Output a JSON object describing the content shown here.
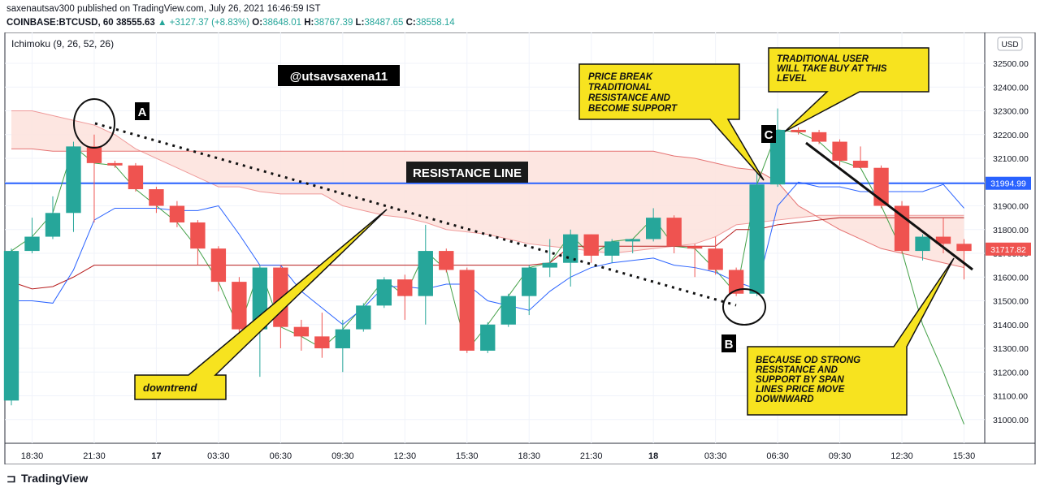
{
  "header": {
    "line1": "saxenautsav300 published on TradingView.com, July 26, 2021 16:46:59 IST",
    "symbol": "COINBASE:BTCUSD, 60",
    "last": "38555.63",
    "change": "+3127.37 (+8.83%)",
    "o_label": "O:",
    "o_value": "38648.01",
    "h_label": "H:",
    "h_value": "38767.39",
    "l_label": "L:",
    "l_value": "38487.65",
    "c_label": "C:",
    "c_value": "38558.14"
  },
  "indicator_label": "Ichimoku (9, 26, 52, 26)",
  "currency_label": "USD",
  "watermark": "@utsavsaxena11",
  "resistance_label": "RESISTANCE LINE",
  "markers": {
    "A": "A",
    "B": "B",
    "C": "C"
  },
  "callouts": {
    "price_break": [
      "PRICE BREAK",
      "TRADITIONAL",
      "RESISTANCE AND",
      "BECOME SUPPORT"
    ],
    "traditional_user": [
      "TRADITIONAL USER",
      "WILL TAKE BUY AT THIS",
      "LEVEL"
    ],
    "because": [
      "BECAUSE OD STRONG",
      "RESISTANCE AND",
      "SUPPORT BY SPAN",
      "LINES PRICE MOVE",
      "DOWNWARD"
    ],
    "downtrend": "downtrend"
  },
  "footer_brand": "TradingView",
  "colors": {
    "up": "#26a69a",
    "down": "#ef5350",
    "resistance": "#2962ff",
    "callout_fill": "#f7e31f",
    "cloud": "#fde2dc",
    "tenkan": "#2962ff",
    "kijun": "#b71c1c",
    "chikou": "#43a047",
    "price_tag": "#ef5350"
  },
  "chart_data": {
    "type": "candlestick",
    "ylim": [
      30900,
      32630
    ],
    "y_ticks": [
      31000,
      31100,
      31200,
      31300,
      31400,
      31500,
      31600,
      31700,
      31800,
      31900,
      32000,
      32100,
      32200,
      32300,
      32400,
      32500
    ],
    "y_tick_labels": [
      "31000.00",
      "31100.00",
      "31200.00",
      "31300.00",
      "31400.00",
      "31500.00",
      "31600.00",
      "31700.00",
      "31800.00",
      "31900.00",
      "32000.00",
      "32100.00",
      "32200.00",
      "32300.00",
      "32400.00",
      "32500.00"
    ],
    "x_tick_labels": [
      "18:30",
      "21:30",
      "17",
      "03:30",
      "06:30",
      "09:30",
      "12:30",
      "15:30",
      "18:30",
      "21:30",
      "18",
      "03:30",
      "06:30",
      "09:30",
      "12:30",
      "15:30"
    ],
    "x_tick_index": [
      1,
      4,
      7,
      10,
      13,
      16,
      19,
      22,
      25,
      28,
      31,
      34,
      37,
      40,
      43,
      46
    ],
    "resistance_level": 31994.99,
    "resistance_label": "31994.99",
    "last_price": 31717.82,
    "last_price_label": "31717.82",
    "candles": [
      {
        "o": 31080,
        "h": 31720,
        "l": 31060,
        "c": 31710
      },
      {
        "o": 31710,
        "h": 31850,
        "l": 31700,
        "c": 31770
      },
      {
        "o": 31770,
        "h": 31940,
        "l": 31760,
        "c": 31870
      },
      {
        "o": 31870,
        "h": 32170,
        "l": 31790,
        "c": 32150
      },
      {
        "o": 32150,
        "h": 32200,
        "l": 31830,
        "c": 32080
      },
      {
        "o": 32080,
        "h": 32090,
        "l": 32060,
        "c": 32070
      },
      {
        "o": 32070,
        "h": 32080,
        "l": 31960,
        "c": 31970
      },
      {
        "o": 31970,
        "h": 31980,
        "l": 31870,
        "c": 31900
      },
      {
        "o": 31900,
        "h": 31920,
        "l": 31810,
        "c": 31830
      },
      {
        "o": 31830,
        "h": 31840,
        "l": 31650,
        "c": 31720
      },
      {
        "o": 31720,
        "h": 31730,
        "l": 31540,
        "c": 31580
      },
      {
        "o": 31580,
        "h": 31600,
        "l": 31360,
        "c": 31380
      },
      {
        "o": 31380,
        "h": 31650,
        "l": 31180,
        "c": 31640
      },
      {
        "o": 31640,
        "h": 31650,
        "l": 31300,
        "c": 31390
      },
      {
        "o": 31390,
        "h": 31420,
        "l": 31290,
        "c": 31350
      },
      {
        "o": 31350,
        "h": 31450,
        "l": 31260,
        "c": 31300
      },
      {
        "o": 31300,
        "h": 31420,
        "l": 31200,
        "c": 31380
      },
      {
        "o": 31380,
        "h": 31490,
        "l": 31370,
        "c": 31480
      },
      {
        "o": 31480,
        "h": 31600,
        "l": 31470,
        "c": 31590
      },
      {
        "o": 31590,
        "h": 31610,
        "l": 31420,
        "c": 31520
      },
      {
        "o": 31520,
        "h": 31820,
        "l": 31400,
        "c": 31710
      },
      {
        "o": 31710,
        "h": 31720,
        "l": 31620,
        "c": 31630
      },
      {
        "o": 31630,
        "h": 31640,
        "l": 31280,
        "c": 31290
      },
      {
        "o": 31290,
        "h": 31410,
        "l": 31280,
        "c": 31400
      },
      {
        "o": 31400,
        "h": 31530,
        "l": 31390,
        "c": 31520
      },
      {
        "o": 31520,
        "h": 31650,
        "l": 31440,
        "c": 31640
      },
      {
        "o": 31640,
        "h": 31760,
        "l": 31600,
        "c": 31660
      },
      {
        "o": 31660,
        "h": 31800,
        "l": 31560,
        "c": 31780
      },
      {
        "o": 31780,
        "h": 31780,
        "l": 31660,
        "c": 31690
      },
      {
        "o": 31690,
        "h": 31760,
        "l": 31660,
        "c": 31750
      },
      {
        "o": 31750,
        "h": 31760,
        "l": 31700,
        "c": 31760
      },
      {
        "o": 31760,
        "h": 31890,
        "l": 31750,
        "c": 31850
      },
      {
        "o": 31850,
        "h": 31860,
        "l": 31700,
        "c": 31730
      },
      {
        "o": 31730,
        "h": 31740,
        "l": 31600,
        "c": 31720
      },
      {
        "o": 31720,
        "h": 31770,
        "l": 31610,
        "c": 31630
      },
      {
        "o": 31630,
        "h": 31640,
        "l": 31520,
        "c": 31530
      },
      {
        "o": 31530,
        "h": 32060,
        "l": 31520,
        "c": 31990
      },
      {
        "o": 31990,
        "h": 32310,
        "l": 31980,
        "c": 32220
      },
      {
        "o": 32220,
        "h": 32230,
        "l": 32200,
        "c": 32210
      },
      {
        "o": 32210,
        "h": 32220,
        "l": 32160,
        "c": 32170
      },
      {
        "o": 32170,
        "h": 32180,
        "l": 32070,
        "c": 32090
      },
      {
        "o": 32090,
        "h": 32150,
        "l": 32060,
        "c": 32060
      },
      {
        "o": 32060,
        "h": 32070,
        "l": 31890,
        "c": 31900
      },
      {
        "o": 31900,
        "h": 31920,
        "l": 31700,
        "c": 31710
      },
      {
        "o": 31710,
        "h": 31780,
        "l": 31670,
        "c": 31770
      },
      {
        "o": 31770,
        "h": 31850,
        "l": 31700,
        "c": 31740
      },
      {
        "o": 31740,
        "h": 31760,
        "l": 31590,
        "c": 31710
      }
    ],
    "tenkan_sen": [
      31500,
      31500,
      31490,
      31630,
      31840,
      31890,
      31890,
      31890,
      31880,
      31880,
      31900,
      31780,
      31650,
      31650,
      31540,
      31470,
      31400,
      31470,
      31560,
      31560,
      31550,
      31570,
      31570,
      31500,
      31480,
      31460,
      31540,
      31600,
      31640,
      31660,
      31670,
      31680,
      31650,
      31640,
      31620,
      31580,
      31550,
      31900,
      32000,
      31980,
      31980,
      31960,
      31960,
      31960,
      31960,
      31990,
      31890
    ],
    "kijun_sen": [
      31580,
      31550,
      31560,
      31600,
      31650,
      31650,
      31650,
      31650,
      31650,
      31650,
      31650,
      31650,
      31650,
      31650,
      31650,
      31650,
      31650,
      31650,
      31650,
      31650,
      31650,
      31650,
      31650,
      31650,
      31650,
      31650,
      31660,
      31730,
      31730,
      31730,
      31730,
      31730,
      31730,
      31730,
      31730,
      31800,
      31800,
      31820,
      31830,
      31840,
      31850,
      31850,
      31850,
      31850,
      31850,
      31850,
      31850
    ],
    "chikou_span": [
      31710,
      31770,
      31870,
      32150,
      32080,
      32070,
      31970,
      31900,
      31830,
      31720,
      31580,
      31380,
      31640,
      31390,
      31350,
      31300,
      31380,
      31480,
      31590,
      31520,
      31710,
      31630,
      31290,
      31400,
      31520,
      31640,
      31660,
      31780,
      31690,
      31750,
      31760,
      31850,
      31730,
      31720,
      31630,
      31530,
      31990,
      32220,
      32210,
      32170,
      32090,
      32060,
      31900,
      31710,
      31400,
      31200,
      30980
    ],
    "senkou_span_a": [
      32300,
      32300,
      32280,
      32260,
      32240,
      32200,
      32140,
      32100,
      32060,
      32020,
      31980,
      31980,
      31960,
      31950,
      31950,
      31950,
      31900,
      31880,
      31860,
      31850,
      31830,
      31800,
      31790,
      31780,
      31760,
      31740,
      31730,
      31720,
      31710,
      31700,
      31710,
      31720,
      31730,
      31740,
      31770,
      31820,
      31830,
      31840,
      31850,
      31860,
      31860,
      31860,
      31860,
      31860,
      31860,
      31860,
      31860
    ],
    "senkou_span_b": [
      32140,
      32140,
      32130,
      32130,
      32130,
      32130,
      32130,
      32130,
      32130,
      32130,
      32130,
      32130,
      32130,
      32130,
      32130,
      32130,
      32130,
      32130,
      32130,
      32130,
      32130,
      32130,
      32130,
      32130,
      32130,
      32130,
      32130,
      32130,
      32130,
      32130,
      32130,
      32130,
      32110,
      32100,
      32080,
      32060,
      32050,
      32000,
      31900,
      31850,
      31800,
      31760,
      31720,
      31700,
      31680,
      31660,
      31640
    ]
  }
}
